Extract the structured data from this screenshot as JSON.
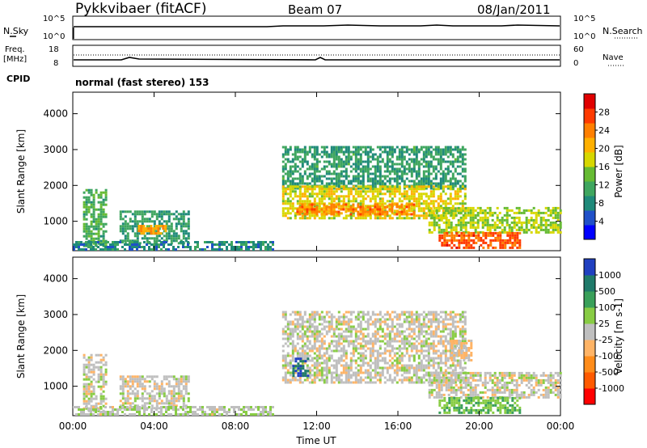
{
  "header": {
    "station": "Pykkvibaer (fitACF)",
    "beam": "Beam 07",
    "date": "08/Jan/2011"
  },
  "params": {
    "nsky_label": "N.Sky",
    "nsky_ticks": [
      "10^5",
      "10^0"
    ],
    "nsearch_label": "N.Search",
    "nsearch_ticks": [
      "10^5",
      "10^0"
    ],
    "freq_label": "Freq.",
    "freq_unit": "[MHz]",
    "freq_ticks": [
      "18",
      "8"
    ],
    "nave_label": "Nave",
    "nave_ticks": [
      "60",
      "0"
    ],
    "cpid_label": "CPID",
    "cpid_value": "normal (fast stereo) 153"
  },
  "chart_data": [
    {
      "type": "heatmap",
      "title": "",
      "xlabel": "Time UT",
      "ylabel": "Slant Range [km]",
      "x_ticks": [
        "00:00",
        "04:00",
        "08:00",
        "12:00",
        "16:00",
        "20:00",
        "00:00"
      ],
      "xlim_hours": [
        0,
        24
      ],
      "y_ticks": [
        "1000",
        "2000",
        "3000",
        "4000"
      ],
      "ylim": [
        180,
        4600
      ],
      "colorbar": {
        "label": "Power [dB]",
        "ticks": [
          "28",
          "24",
          "20",
          "16",
          "12",
          "8",
          "4"
        ],
        "range": [
          0,
          32
        ],
        "colors": [
          "#0000ff",
          "#2050c8",
          "#1f8a7a",
          "#3fa65f",
          "#66bb33",
          "#d7d700",
          "#ffb000",
          "#ff7f00",
          "#ff3a00",
          "#e00000"
        ]
      },
      "echo_regions": [
        {
          "t0": 0.5,
          "t1": 1.6,
          "r0": 300,
          "r1": 1900,
          "level": 12
        },
        {
          "t0": 2.3,
          "t1": 5.7,
          "r0": 400,
          "r1": 1300,
          "level": 10
        },
        {
          "t0": 3.2,
          "t1": 4.6,
          "r0": 650,
          "r1": 900,
          "level": 22
        },
        {
          "t0": 0.0,
          "t1": 9.8,
          "r0": 200,
          "r1": 450,
          "level": 8
        },
        {
          "t0": 10.3,
          "t1": 19.3,
          "r0": 1900,
          "r1": 3100,
          "level": 10
        },
        {
          "t0": 10.3,
          "t1": 19.3,
          "r0": 1100,
          "r1": 2000,
          "level": 18
        },
        {
          "t0": 11.0,
          "t1": 16.8,
          "r0": 1200,
          "r1": 1500,
          "level": 24
        },
        {
          "t0": 17.5,
          "t1": 24.0,
          "r0": 700,
          "r1": 1400,
          "level": 16
        },
        {
          "t0": 18.0,
          "t1": 22.0,
          "r0": 280,
          "r1": 700,
          "level": 26
        }
      ]
    },
    {
      "type": "heatmap",
      "title": "",
      "xlabel": "Time UT",
      "ylabel": "Slant Range [km]",
      "x_ticks": [
        "00:00",
        "04:00",
        "08:00",
        "12:00",
        "16:00",
        "20:00",
        "00:00"
      ],
      "xlim_hours": [
        0,
        24
      ],
      "y_ticks": [
        "1000",
        "2000",
        "3000",
        "4000"
      ],
      "ylim": [
        180,
        4600
      ],
      "colorbar": {
        "label": "Velocity [m s-1]",
        "ticks": [
          "1000",
          "500",
          "100",
          "25",
          "-25",
          "-100",
          "-500",
          "-1000"
        ],
        "range": [
          -1000,
          1000
        ],
        "colors": [
          "#ff0000",
          "#ff5a00",
          "#ff8c1a",
          "#ffb466",
          "#bfbfbf",
          "#88cc44",
          "#3aa05a",
          "#1f7a6a",
          "#2040c0"
        ]
      },
      "echo_regions": [
        {
          "t0": 0.5,
          "t1": 1.6,
          "r0": 300,
          "r1": 1900,
          "level": 0
        },
        {
          "t0": 2.3,
          "t1": 5.7,
          "r0": 400,
          "r1": 1300,
          "level": 0
        },
        {
          "t0": 0.0,
          "t1": 9.8,
          "r0": 200,
          "r1": 450,
          "level": 60
        },
        {
          "t0": 10.3,
          "t1": 19.3,
          "r0": 1100,
          "r1": 3100,
          "level": 0
        },
        {
          "t0": 10.8,
          "t1": 11.6,
          "r0": 1300,
          "r1": 1800,
          "level": 800
        },
        {
          "t0": 17.5,
          "t1": 24.0,
          "r0": 700,
          "r1": 1400,
          "level": 0
        },
        {
          "t0": 18.0,
          "t1": 22.0,
          "r0": 280,
          "r1": 700,
          "level": 300
        },
        {
          "t0": 18.6,
          "t1": 19.6,
          "r0": 1700,
          "r1": 2300,
          "level": -150
        }
      ]
    }
  ]
}
